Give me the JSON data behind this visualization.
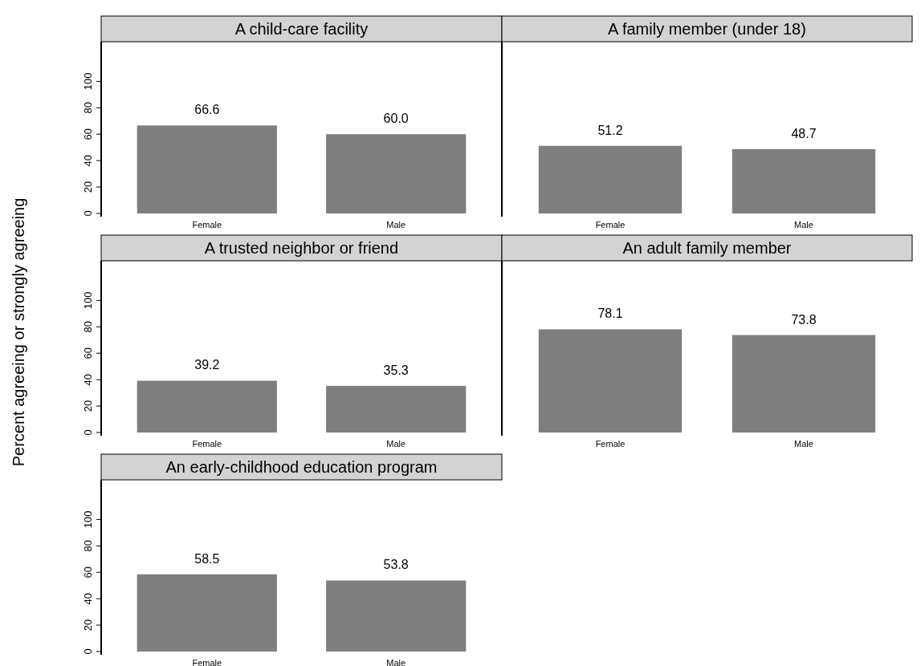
{
  "chart_data": [
    {
      "type": "bar",
      "title": "A child-care facility",
      "categories": [
        "Female",
        "Male"
      ],
      "values": [
        66.6,
        60.0
      ],
      "value_labels": [
        "66.6",
        "60.0"
      ],
      "color": "#7f7f7f",
      "ylim": [
        0,
        130
      ],
      "yticks": [
        0,
        20,
        40,
        60,
        80,
        100
      ]
    },
    {
      "type": "bar",
      "title": "A family member (under 18)",
      "categories": [
        "Female",
        "Male"
      ],
      "values": [
        51.2,
        48.7
      ],
      "value_labels": [
        "51.2",
        "48.7"
      ],
      "color": "#7f7f7f",
      "ylim": [
        0,
        130
      ],
      "tick_labels": "x"
    },
    {
      "type": "bar",
      "title": "A trusted neighbor or friend",
      "ylabel": "Percent agreeing or strongly agreeing",
      "categories": [
        "Female",
        "Male"
      ],
      "values": [
        39.2,
        35.3
      ],
      "value_labels": [
        "39.2",
        "35.3"
      ],
      "color": "#7f7f7f",
      "ylim": [
        0,
        130
      ],
      "yticks": [
        0,
        20,
        40,
        60,
        80,
        100
      ]
    },
    {
      "type": "bar",
      "title": "An adult family member",
      "categories": [
        "Female",
        "Male"
      ],
      "values": [
        78.1,
        73.8
      ],
      "value_labels": [
        "78.1",
        "73.8"
      ],
      "color": "#7f7f7f",
      "ylim": [
        0,
        130
      ],
      "tick_labels": "x"
    },
    {
      "type": "bar",
      "title": "An early-childhood education program",
      "categories": [
        "Female",
        "Male"
      ],
      "values": [
        58.5,
        53.8
      ],
      "value_labels": [
        "58.5",
        "53.8"
      ],
      "color": "#7f7f7f",
      "ylim": [
        0,
        130
      ],
      "yticks": [
        0,
        20,
        40,
        60,
        80,
        100
      ]
    }
  ]
}
